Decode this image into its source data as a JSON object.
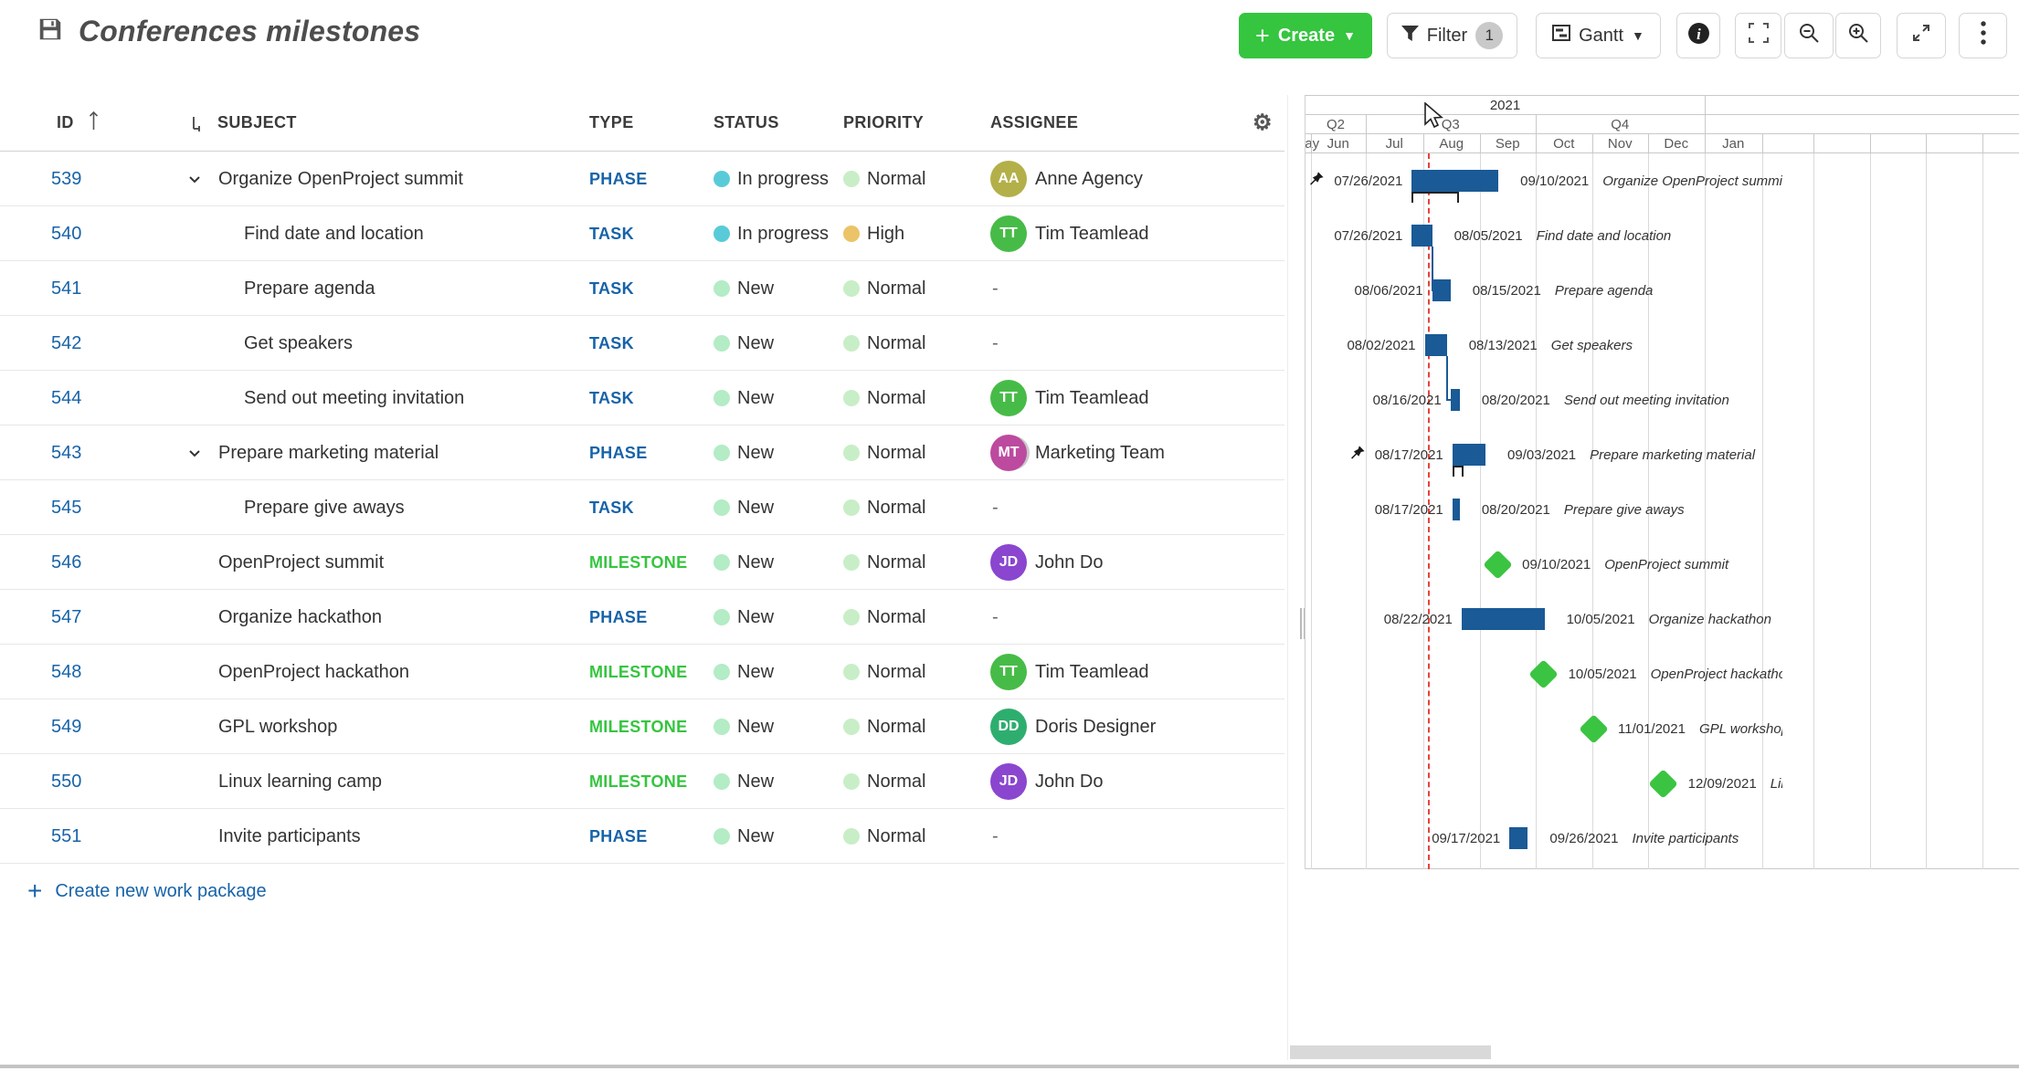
{
  "header": {
    "title": "Conferences milestones"
  },
  "toolbar": {
    "create_label": "Create",
    "filter_label": "Filter",
    "filter_count": "1",
    "gantt_label": "Gantt"
  },
  "table": {
    "columns": {
      "id": "ID",
      "subject": "SUBJECT",
      "type": "TYPE",
      "status": "STATUS",
      "priority": "PRIORITY",
      "assignee": "ASSIGNEE"
    },
    "create_link": "Create new work package",
    "rows": [
      {
        "id": "539",
        "subject": "Organize OpenProject summit",
        "child": false,
        "parent": true,
        "type": "PHASE",
        "status": "In progress",
        "status_key": "inprogress",
        "priority": "Normal",
        "priority_key": "normal",
        "assignee": {
          "initials": "AA",
          "name": "Anne Agency",
          "color": "#b3b04a",
          "group": false
        }
      },
      {
        "id": "540",
        "subject": "Find date and location",
        "child": true,
        "parent": false,
        "type": "TASK",
        "status": "In progress",
        "status_key": "inprogress",
        "priority": "High",
        "priority_key": "high",
        "assignee": {
          "initials": "TT",
          "name": "Tim Teamlead",
          "color": "#47bb47",
          "group": false
        }
      },
      {
        "id": "541",
        "subject": "Prepare agenda",
        "child": true,
        "parent": false,
        "type": "TASK",
        "status": "New",
        "status_key": "new",
        "priority": "Normal",
        "priority_key": "normal",
        "assignee": null
      },
      {
        "id": "542",
        "subject": "Get speakers",
        "child": true,
        "parent": false,
        "type": "TASK",
        "status": "New",
        "status_key": "new",
        "priority": "Normal",
        "priority_key": "normal",
        "assignee": null
      },
      {
        "id": "544",
        "subject": "Send out meeting invitation",
        "child": true,
        "parent": false,
        "type": "TASK",
        "status": "New",
        "status_key": "new",
        "priority": "Normal",
        "priority_key": "normal",
        "assignee": {
          "initials": "TT",
          "name": "Tim Teamlead",
          "color": "#47bb47",
          "group": false
        }
      },
      {
        "id": "543",
        "subject": "Prepare marketing material",
        "child": false,
        "parent": true,
        "type": "PHASE",
        "status": "New",
        "status_key": "new",
        "priority": "Normal",
        "priority_key": "normal",
        "assignee": {
          "initials": "MT",
          "name": "Marketing Team",
          "color": "#bc4a9f",
          "group": true
        }
      },
      {
        "id": "545",
        "subject": "Prepare give aways",
        "child": true,
        "parent": false,
        "type": "TASK",
        "status": "New",
        "status_key": "new",
        "priority": "Normal",
        "priority_key": "normal",
        "assignee": null
      },
      {
        "id": "546",
        "subject": "OpenProject summit",
        "child": false,
        "parent": false,
        "type": "MILESTONE",
        "status": "New",
        "status_key": "new",
        "priority": "Normal",
        "priority_key": "normal",
        "assignee": {
          "initials": "JD",
          "name": "John Do",
          "color": "#8a46cf",
          "group": false
        }
      },
      {
        "id": "547",
        "subject": "Organize hackathon",
        "child": false,
        "parent": false,
        "type": "PHASE",
        "status": "New",
        "status_key": "new",
        "priority": "Normal",
        "priority_key": "normal",
        "assignee": null
      },
      {
        "id": "548",
        "subject": "OpenProject hackathon",
        "child": false,
        "parent": false,
        "type": "MILESTONE",
        "status": "New",
        "status_key": "new",
        "priority": "Normal",
        "priority_key": "normal",
        "assignee": {
          "initials": "TT",
          "name": "Tim Teamlead",
          "color": "#47bb47",
          "group": false
        }
      },
      {
        "id": "549",
        "subject": "GPL workshop",
        "child": false,
        "parent": false,
        "type": "MILESTONE",
        "status": "New",
        "status_key": "new",
        "priority": "Normal",
        "priority_key": "normal",
        "assignee": {
          "initials": "DD",
          "name": "Doris Designer",
          "color": "#2eae6e",
          "group": false
        }
      },
      {
        "id": "550",
        "subject": "Linux learning camp",
        "child": false,
        "parent": false,
        "type": "MILESTONE",
        "status": "New",
        "status_key": "new",
        "priority": "Normal",
        "priority_key": "normal",
        "assignee": {
          "initials": "JD",
          "name": "John Do",
          "color": "#8a46cf",
          "group": false
        }
      },
      {
        "id": "551",
        "subject": "Invite participants",
        "child": false,
        "parent": false,
        "type": "PHASE",
        "status": "New",
        "status_key": "new",
        "priority": "Normal",
        "priority_key": "normal",
        "assignee": null
      }
    ]
  },
  "colors": {
    "type_phase": "#1763a8",
    "type_task": "#1763a8",
    "type_milestone": "#35c53f",
    "status_inprogress": "#59cbd8",
    "status_new": "#b3ecc5",
    "priority_normal": "#c8eec7",
    "priority_high": "#ebc368",
    "bar": "#1a5a96",
    "milestone": "#3bc441",
    "today_line": "#e8433a",
    "create_button": "#35c53f",
    "link": "#1763a8"
  },
  "gantt": {
    "year": "2021",
    "quarters": [
      "Q2",
      "Q3",
      "Q4"
    ],
    "months": [
      "May",
      "Jun",
      "Jul",
      "Aug",
      "Sep",
      "Oct",
      "Nov",
      "Dec",
      "Jan"
    ],
    "rows": [
      {
        "kind": "bar",
        "pinned": true,
        "start": "07/26/2021",
        "end": "09/10/2021",
        "name": "Organize OpenProject summit",
        "bracket": 52
      },
      {
        "kind": "bar",
        "pinned": false,
        "start": "07/26/2021",
        "end": "08/05/2021",
        "name": "Find date and location"
      },
      {
        "kind": "bar",
        "pinned": false,
        "start": "08/06/2021",
        "end": "08/15/2021",
        "name": "Prepare agenda"
      },
      {
        "kind": "bar",
        "pinned": false,
        "start": "08/02/2021",
        "end": "08/13/2021",
        "name": "Get speakers"
      },
      {
        "kind": "bar",
        "pinned": false,
        "start": "08/16/2021",
        "end": "08/20/2021",
        "name": "Send out meeting invitation"
      },
      {
        "kind": "bar",
        "pinned": true,
        "start": "08/17/2021",
        "end": "09/03/2021",
        "name": "Prepare marketing material",
        "bracket": 12
      },
      {
        "kind": "bar",
        "pinned": false,
        "start": "08/17/2021",
        "end": "08/20/2021",
        "name": "Prepare give aways"
      },
      {
        "kind": "milestone",
        "pinned": false,
        "date": "09/10/2021",
        "name": "OpenProject summit"
      },
      {
        "kind": "bar",
        "pinned": false,
        "start": "08/22/2021",
        "end": "10/05/2021",
        "name": "Organize hackathon"
      },
      {
        "kind": "milestone",
        "pinned": false,
        "date": "10/05/2021",
        "name": "OpenProject hackathon"
      },
      {
        "kind": "milestone",
        "pinned": false,
        "date": "11/01/2021",
        "name": "GPL workshop"
      },
      {
        "kind": "milestone",
        "pinned": false,
        "date": "12/09/2021",
        "name": "Linux learning camp"
      },
      {
        "kind": "bar",
        "pinned": false,
        "start": "09/17/2021",
        "end": "09/26/2021",
        "name": "Invite participants"
      }
    ],
    "connectors": [
      {
        "from": 1,
        "to": 2
      },
      {
        "from": 3,
        "to": 4
      }
    ]
  }
}
